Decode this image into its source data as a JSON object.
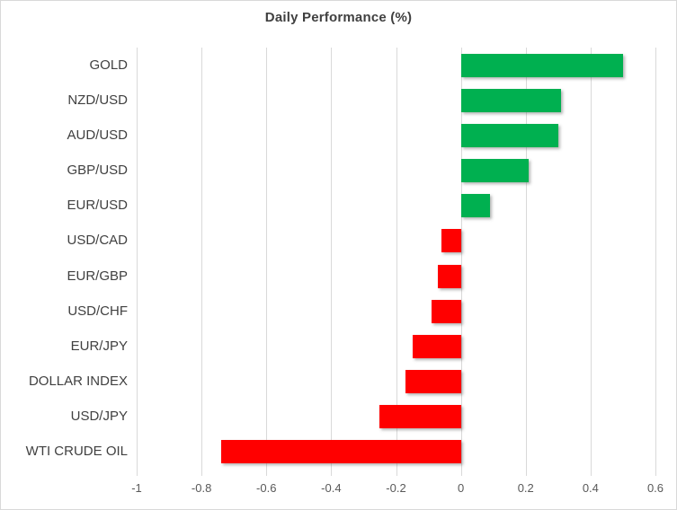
{
  "chart_data": {
    "type": "bar",
    "orientation": "horizontal",
    "title": "Daily Performance (%)",
    "categories": [
      "GOLD",
      "NZD/USD",
      "AUD/USD",
      "GBP/USD",
      "EUR/USD",
      "USD/CAD",
      "EUR/GBP",
      "USD/CHF",
      "EUR/JPY",
      "DOLLAR INDEX",
      "USD/JPY",
      "WTI CRUDE OIL"
    ],
    "values": [
      0.5,
      0.31,
      0.3,
      0.21,
      0.09,
      -0.06,
      -0.07,
      -0.09,
      -0.15,
      -0.17,
      -0.25,
      -0.74
    ],
    "xlim": [
      -1,
      0.6
    ],
    "xticks": [
      -1,
      -0.8,
      -0.6,
      -0.4,
      -0.2,
      0,
      0.2,
      0.4,
      0.6
    ],
    "xtick_labels": [
      "-1",
      "-0.8",
      "-0.6",
      "-0.4",
      "-0.2",
      "0",
      "0.2",
      "0.4",
      "0.6"
    ],
    "grid": true,
    "legend": "none",
    "colors": {
      "positive": "#00B050",
      "negative": "#FF0000",
      "gridline": "#D9D9D9",
      "title_text": "#404040",
      "axis_text": "#595959",
      "category_text": "#404040",
      "border": "#D9D9D9",
      "background": "#FFFFFF"
    }
  }
}
